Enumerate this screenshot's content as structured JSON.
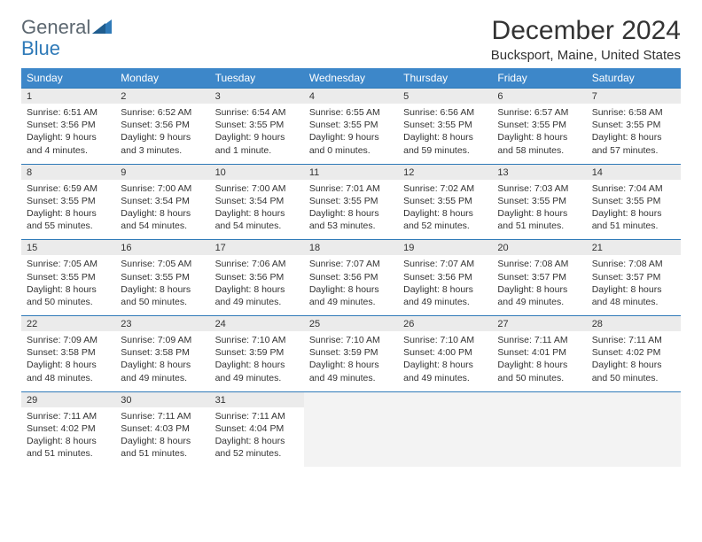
{
  "logo": {
    "word1": "General",
    "word2": "Blue"
  },
  "title": "December 2024",
  "location": "Bucksport, Maine, United States",
  "day_headers": [
    "Sunday",
    "Monday",
    "Tuesday",
    "Wednesday",
    "Thursday",
    "Friday",
    "Saturday"
  ],
  "colors": {
    "header_bg": "#3d87c9",
    "header_text": "#ffffff",
    "date_bar_bg": "#ebebeb",
    "date_bar_border": "#2f7ab8",
    "body_text": "#333333",
    "logo_gray": "#5c6770",
    "logo_blue": "#2f7ab8"
  },
  "weeks": [
    [
      {
        "date": "1",
        "sunrise": "Sunrise: 6:51 AM",
        "sunset": "Sunset: 3:56 PM",
        "daylight": "Daylight: 9 hours and 4 minutes."
      },
      {
        "date": "2",
        "sunrise": "Sunrise: 6:52 AM",
        "sunset": "Sunset: 3:56 PM",
        "daylight": "Daylight: 9 hours and 3 minutes."
      },
      {
        "date": "3",
        "sunrise": "Sunrise: 6:54 AM",
        "sunset": "Sunset: 3:55 PM",
        "daylight": "Daylight: 9 hours and 1 minute."
      },
      {
        "date": "4",
        "sunrise": "Sunrise: 6:55 AM",
        "sunset": "Sunset: 3:55 PM",
        "daylight": "Daylight: 9 hours and 0 minutes."
      },
      {
        "date": "5",
        "sunrise": "Sunrise: 6:56 AM",
        "sunset": "Sunset: 3:55 PM",
        "daylight": "Daylight: 8 hours and 59 minutes."
      },
      {
        "date": "6",
        "sunrise": "Sunrise: 6:57 AM",
        "sunset": "Sunset: 3:55 PM",
        "daylight": "Daylight: 8 hours and 58 minutes."
      },
      {
        "date": "7",
        "sunrise": "Sunrise: 6:58 AM",
        "sunset": "Sunset: 3:55 PM",
        "daylight": "Daylight: 8 hours and 57 minutes."
      }
    ],
    [
      {
        "date": "8",
        "sunrise": "Sunrise: 6:59 AM",
        "sunset": "Sunset: 3:55 PM",
        "daylight": "Daylight: 8 hours and 55 minutes."
      },
      {
        "date": "9",
        "sunrise": "Sunrise: 7:00 AM",
        "sunset": "Sunset: 3:54 PM",
        "daylight": "Daylight: 8 hours and 54 minutes."
      },
      {
        "date": "10",
        "sunrise": "Sunrise: 7:00 AM",
        "sunset": "Sunset: 3:54 PM",
        "daylight": "Daylight: 8 hours and 54 minutes."
      },
      {
        "date": "11",
        "sunrise": "Sunrise: 7:01 AM",
        "sunset": "Sunset: 3:55 PM",
        "daylight": "Daylight: 8 hours and 53 minutes."
      },
      {
        "date": "12",
        "sunrise": "Sunrise: 7:02 AM",
        "sunset": "Sunset: 3:55 PM",
        "daylight": "Daylight: 8 hours and 52 minutes."
      },
      {
        "date": "13",
        "sunrise": "Sunrise: 7:03 AM",
        "sunset": "Sunset: 3:55 PM",
        "daylight": "Daylight: 8 hours and 51 minutes."
      },
      {
        "date": "14",
        "sunrise": "Sunrise: 7:04 AM",
        "sunset": "Sunset: 3:55 PM",
        "daylight": "Daylight: 8 hours and 51 minutes."
      }
    ],
    [
      {
        "date": "15",
        "sunrise": "Sunrise: 7:05 AM",
        "sunset": "Sunset: 3:55 PM",
        "daylight": "Daylight: 8 hours and 50 minutes."
      },
      {
        "date": "16",
        "sunrise": "Sunrise: 7:05 AM",
        "sunset": "Sunset: 3:55 PM",
        "daylight": "Daylight: 8 hours and 50 minutes."
      },
      {
        "date": "17",
        "sunrise": "Sunrise: 7:06 AM",
        "sunset": "Sunset: 3:56 PM",
        "daylight": "Daylight: 8 hours and 49 minutes."
      },
      {
        "date": "18",
        "sunrise": "Sunrise: 7:07 AM",
        "sunset": "Sunset: 3:56 PM",
        "daylight": "Daylight: 8 hours and 49 minutes."
      },
      {
        "date": "19",
        "sunrise": "Sunrise: 7:07 AM",
        "sunset": "Sunset: 3:56 PM",
        "daylight": "Daylight: 8 hours and 49 minutes."
      },
      {
        "date": "20",
        "sunrise": "Sunrise: 7:08 AM",
        "sunset": "Sunset: 3:57 PM",
        "daylight": "Daylight: 8 hours and 49 minutes."
      },
      {
        "date": "21",
        "sunrise": "Sunrise: 7:08 AM",
        "sunset": "Sunset: 3:57 PM",
        "daylight": "Daylight: 8 hours and 48 minutes."
      }
    ],
    [
      {
        "date": "22",
        "sunrise": "Sunrise: 7:09 AM",
        "sunset": "Sunset: 3:58 PM",
        "daylight": "Daylight: 8 hours and 48 minutes."
      },
      {
        "date": "23",
        "sunrise": "Sunrise: 7:09 AM",
        "sunset": "Sunset: 3:58 PM",
        "daylight": "Daylight: 8 hours and 49 minutes."
      },
      {
        "date": "24",
        "sunrise": "Sunrise: 7:10 AM",
        "sunset": "Sunset: 3:59 PM",
        "daylight": "Daylight: 8 hours and 49 minutes."
      },
      {
        "date": "25",
        "sunrise": "Sunrise: 7:10 AM",
        "sunset": "Sunset: 3:59 PM",
        "daylight": "Daylight: 8 hours and 49 minutes."
      },
      {
        "date": "26",
        "sunrise": "Sunrise: 7:10 AM",
        "sunset": "Sunset: 4:00 PM",
        "daylight": "Daylight: 8 hours and 49 minutes."
      },
      {
        "date": "27",
        "sunrise": "Sunrise: 7:11 AM",
        "sunset": "Sunset: 4:01 PM",
        "daylight": "Daylight: 8 hours and 50 minutes."
      },
      {
        "date": "28",
        "sunrise": "Sunrise: 7:11 AM",
        "sunset": "Sunset: 4:02 PM",
        "daylight": "Daylight: 8 hours and 50 minutes."
      }
    ],
    [
      {
        "date": "29",
        "sunrise": "Sunrise: 7:11 AM",
        "sunset": "Sunset: 4:02 PM",
        "daylight": "Daylight: 8 hours and 51 minutes."
      },
      {
        "date": "30",
        "sunrise": "Sunrise: 7:11 AM",
        "sunset": "Sunset: 4:03 PM",
        "daylight": "Daylight: 8 hours and 51 minutes."
      },
      {
        "date": "31",
        "sunrise": "Sunrise: 7:11 AM",
        "sunset": "Sunset: 4:04 PM",
        "daylight": "Daylight: 8 hours and 52 minutes."
      },
      null,
      null,
      null,
      null
    ]
  ]
}
